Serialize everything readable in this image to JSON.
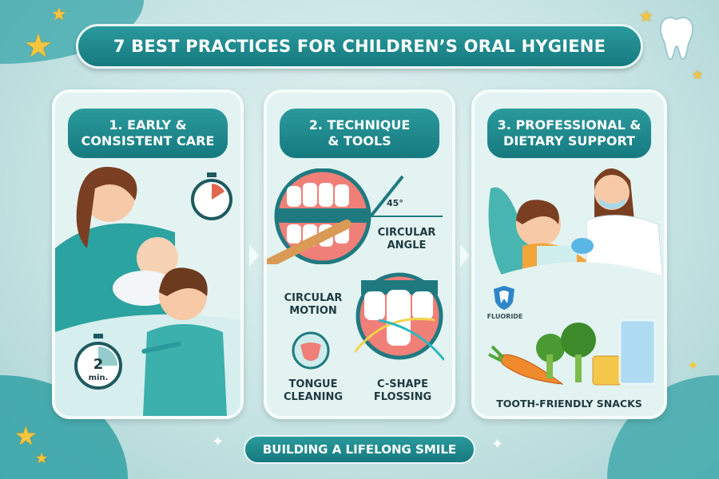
{
  "title": "7 BEST PRACTICES FOR CHILDREN’S ORAL HYGIENE",
  "panels": [
    {
      "heading_line1": "1. EARLY &",
      "heading_line2": "CONSISTENT CARE",
      "timer_label": "2",
      "timer_unit": "min."
    },
    {
      "heading_line1": "2. TECHNIQUE",
      "heading_line2": "& TOOLS",
      "angle": "45°",
      "labels": [
        "CIRCULAR ANGLE",
        "CIRCULAR MOTION",
        "TONGUE CLEANING",
        "C-SHAPE FLOSSING"
      ]
    },
    {
      "heading_line1": "3. PROFESSIONAL &",
      "heading_line2": "DIETARY SUPPORT",
      "fluoride": "FLUORIDE",
      "snacks": "TOOTH-FRIENDLY SNACKS"
    }
  ],
  "footer": "BUILDING A LIFELONG SMILE",
  "colors": {
    "teal": "#1f8a8f",
    "panel_bg": "#e3f3f2",
    "star": "#f7c640"
  },
  "icons": [
    "star-icon",
    "tooth-icon",
    "stopwatch-icon",
    "toothbrush-icon",
    "floss-icon",
    "tongue-icon",
    "fluoride-tooth-icon",
    "arrow-right-icon"
  ]
}
